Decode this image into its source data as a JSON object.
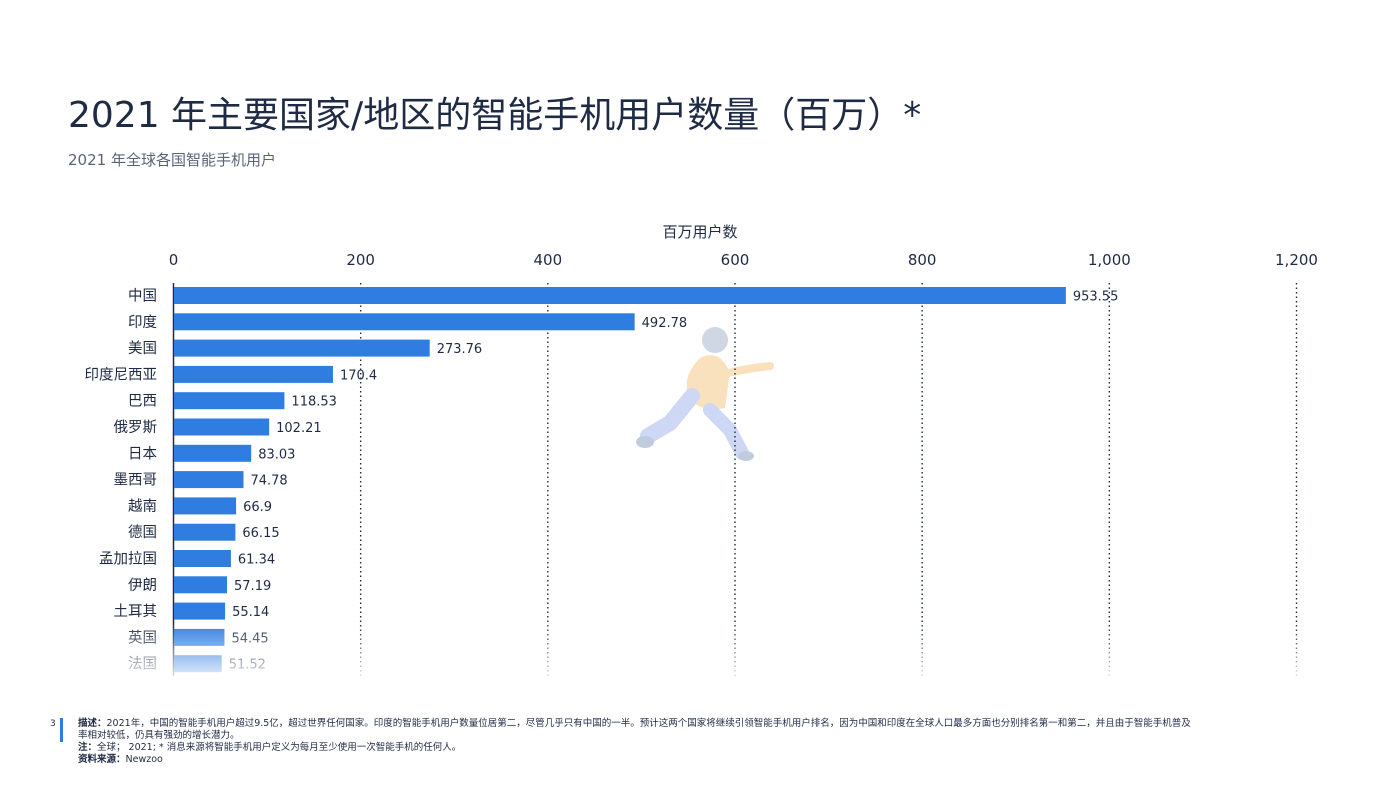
{
  "page": {
    "title": "2021 年主要国家/地区的智能手机用户数量（百万）*",
    "subtitle": "2021 年全球各国智能手机用户",
    "page_number": "3"
  },
  "footer": {
    "desc_label": "描述：",
    "desc_text": "2021年，中国的智能手机用户超过9.5亿，超过世界任何国家。印度的智能手机用户数量位居第二，尽管几乎只有中国的一半。预计这两个国家将继续引领智能手机用户排名，因为中国和印度在全球人口最多方面也分别排名第一和第二，并且由于智能手机普及率相对较低，仍具有强劲的增长潜力。",
    "note_label": "注：",
    "note_text": "全球； 2021; * 消息来源将智能手机用户定义为每月至少使用一次智能手机的任何人。",
    "source_label": "资料来源：",
    "source_text": "Newzoo"
  },
  "colors": {
    "bar": "#2f7de0",
    "text": "#1f2a44",
    "grid": "#1f2a44"
  },
  "chart_data": {
    "type": "bar",
    "orientation": "horizontal",
    "xlabel": "百万用户数",
    "x_axis_position": "top",
    "xlim": [
      0,
      1200
    ],
    "xticks": [
      0,
      200,
      400,
      600,
      800,
      1000,
      1200
    ],
    "xtick_labels": [
      "0",
      "200",
      "400",
      "600",
      "800",
      "1,000",
      "1,200"
    ],
    "grid": "vertical dotted",
    "categories": [
      "中国",
      "印度",
      "美国",
      "印度尼西亚",
      "巴西",
      "俄罗斯",
      "日本",
      "墨西哥",
      "越南",
      "德国",
      "孟加拉国",
      "伊朗",
      "土耳其",
      "英国",
      "法国"
    ],
    "values": [
      953.55,
      492.78,
      273.76,
      170.4,
      118.53,
      102.21,
      83.03,
      74.78,
      66.9,
      66.15,
      61.34,
      57.19,
      55.14,
      54.45,
      51.52
    ],
    "value_labels": [
      "953.55",
      "492.78",
      "273.76",
      "170.4",
      "118.53",
      "102.21",
      "83.03",
      "74.78",
      "66.9",
      "66.15",
      "61.34",
      "57.19",
      "55.14",
      "54.45",
      "51.52"
    ]
  }
}
